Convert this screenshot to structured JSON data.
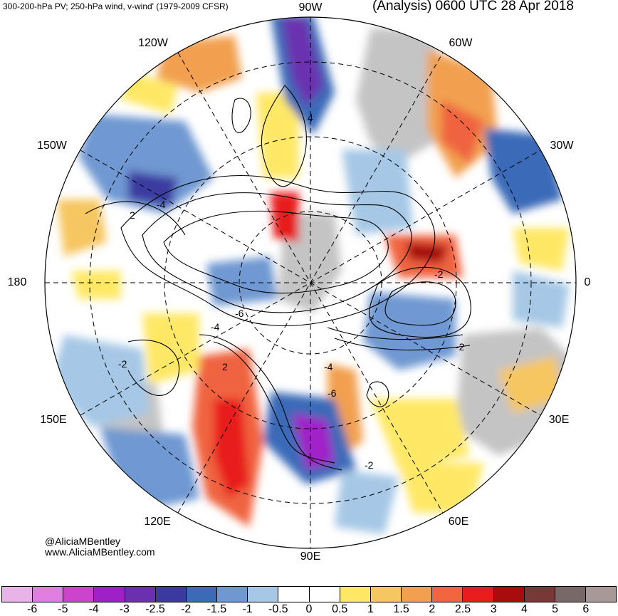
{
  "header": {
    "left_title": "300-200-hPa PV; 250-hPa wind, v-wind' (1979-2009 CFSR)",
    "right_title": "(Analysis) 0600 UTC 28 Apr 2018"
  },
  "longitude_labels": [
    {
      "id": "90W",
      "text": "90W"
    },
    {
      "id": "60W",
      "text": "60W"
    },
    {
      "id": "30W",
      "text": "30W"
    },
    {
      "id": "0",
      "text": "0"
    },
    {
      "id": "30E",
      "text": "30E"
    },
    {
      "id": "60E",
      "text": "60E"
    },
    {
      "id": "90E",
      "text": "90E"
    },
    {
      "id": "120E",
      "text": "120E"
    },
    {
      "id": "150E",
      "text": "150E"
    },
    {
      "id": "180",
      "text": "180"
    },
    {
      "id": "150W",
      "text": "150W"
    },
    {
      "id": "120W",
      "text": "120W"
    }
  ],
  "contour_labels": [
    "4",
    "2",
    "-4",
    "-6",
    "-4",
    "-2",
    "2",
    "-2",
    "-4",
    "-6",
    "-2",
    "-2"
  ],
  "credits": {
    "twitter": "@AliciaMBentley",
    "website": "www.AliciaMBentley.com"
  },
  "colorbar": {
    "colors": [
      "#e8b4e8",
      "#e07de0",
      "#cc44cc",
      "#a020c8",
      "#6a30b0",
      "#3a3aa0",
      "#3b6bb8",
      "#6f98d2",
      "#a6c8e6",
      "#ffffff",
      "#ffffff",
      "#ffe866",
      "#f6c660",
      "#f2a050",
      "#f06440",
      "#e81c1c",
      "#a80c0c",
      "#783838",
      "#786868",
      "#a89898"
    ],
    "ticks": [
      "-6",
      "-5",
      "-4",
      "-3",
      "-2.5",
      "-2",
      "-1.5",
      "-1",
      "-0.5",
      "0",
      "0.5",
      "1",
      "1.5",
      "2",
      "2.5",
      "3",
      "4",
      "5",
      "6"
    ]
  },
  "colors": {
    "positive_strong": "#e81c1c",
    "positive_mid": "#f2a050",
    "positive_weak": "#ffe866",
    "negative_weak": "#a6c8e6",
    "negative_mid": "#3b6bb8",
    "negative_strong": "#6a30b0",
    "land": "#c4c4c4"
  }
}
